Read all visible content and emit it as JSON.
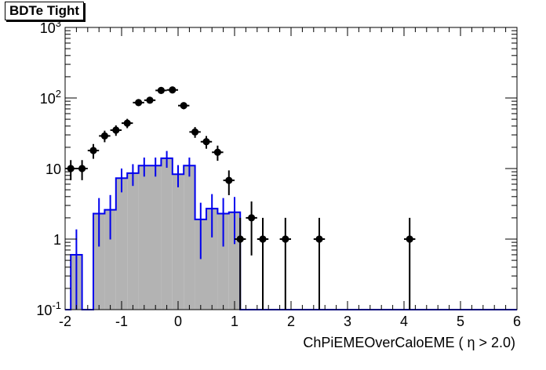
{
  "chart_data": {
    "type": "histogram",
    "title": "BDTe Tight",
    "xlabel": "ChPiEMEOverCaloEME ( η > 2.0)",
    "xlim": [
      -2,
      6
    ],
    "ylim": [
      0.1,
      1000
    ],
    "yscale": "log",
    "grid": false,
    "x_ticks": [
      "-2",
      "-1",
      "0",
      "1",
      "2",
      "3",
      "4",
      "5",
      "6"
    ],
    "y_ticks": [
      {
        "base": "10",
        "exp": "-1"
      },
      {
        "base": "1",
        "exp": ""
      },
      {
        "base": "10",
        "exp": ""
      },
      {
        "base": "10",
        "exp": "2"
      },
      {
        "base": "10",
        "exp": "3"
      }
    ],
    "bin_width": 0.2,
    "series": [
      {
        "style": "filled-histogram",
        "fill_color": "#b3b3b3",
        "line_color": "#0000ee",
        "bins": [
          {
            "x": -1.8,
            "y": 0.6
          },
          {
            "x": -1.4,
            "y": 2.3
          },
          {
            "x": -1.2,
            "y": 2.6
          },
          {
            "x": -1.0,
            "y": 7.3
          },
          {
            "x": -0.8,
            "y": 8.6
          },
          {
            "x": -0.6,
            "y": 11.0
          },
          {
            "x": -0.4,
            "y": 11.0
          },
          {
            "x": -0.2,
            "y": 14.0
          },
          {
            "x": 0.0,
            "y": 8.3
          },
          {
            "x": 0.2,
            "y": 11.0
          },
          {
            "x": 0.4,
            "y": 1.9
          },
          {
            "x": 0.6,
            "y": 2.7
          },
          {
            "x": 0.8,
            "y": 2.3
          },
          {
            "x": 1.0,
            "y": 2.4
          }
        ]
      },
      {
        "style": "points-with-errors",
        "color": "#000000",
        "points": [
          {
            "x": -1.9,
            "y": 10
          },
          {
            "x": -1.7,
            "y": 10
          },
          {
            "x": -1.5,
            "y": 18
          },
          {
            "x": -1.3,
            "y": 29
          },
          {
            "x": -1.1,
            "y": 35
          },
          {
            "x": -0.9,
            "y": 44
          },
          {
            "x": -0.7,
            "y": 86
          },
          {
            "x": -0.5,
            "y": 93
          },
          {
            "x": -0.3,
            "y": 128
          },
          {
            "x": -0.1,
            "y": 130
          },
          {
            "x": 0.1,
            "y": 78
          },
          {
            "x": 0.3,
            "y": 33
          },
          {
            "x": 0.5,
            "y": 24
          },
          {
            "x": 0.7,
            "y": 17
          },
          {
            "x": 0.9,
            "y": 6.8
          },
          {
            "x": 1.1,
            "y": 1
          },
          {
            "x": 1.3,
            "y": 2
          },
          {
            "x": 1.5,
            "y": 1
          },
          {
            "x": 1.9,
            "y": 1
          },
          {
            "x": 2.5,
            "y": 1
          },
          {
            "x": 4.1,
            "y": 1
          }
        ]
      }
    ]
  }
}
